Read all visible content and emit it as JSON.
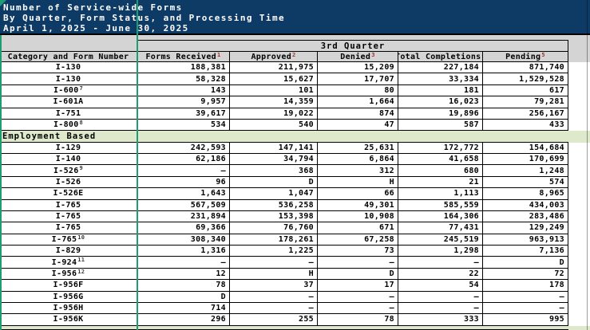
{
  "title": {
    "line1": "Number of Service-wide Forms",
    "line2": "By Quarter, Form Status, and Processing Time",
    "line3": "April 1, 2025 - June 30, 2025"
  },
  "colors": {
    "title_background": "#0E3A66",
    "header_background": "#D4D4D4",
    "section_row_background": "#DEE9CB",
    "selection_border_green": "#1F9D72",
    "footnote_red": "#9E2F26"
  },
  "table": {
    "quarter_header": "3rd Quarter",
    "columns": [
      {
        "key": "form_number",
        "label": "Category and Form Number",
        "sup": ""
      },
      {
        "key": "forms_received",
        "label": "Forms Received",
        "sup": "1"
      },
      {
        "key": "approved",
        "label": "Approved",
        "sup": "2"
      },
      {
        "key": "denied",
        "label": "Denied",
        "sup": "3"
      },
      {
        "key": "total_completions",
        "label": "Total Completions",
        "sup": "4"
      },
      {
        "key": "pending",
        "label": "Pending",
        "sup": "5"
      }
    ],
    "rows": [
      {
        "type": "data",
        "form": "I-130",
        "sup": "",
        "values": [
          "188,381",
          "211,975",
          "15,209",
          "227,184",
          "871,740"
        ]
      },
      {
        "type": "data",
        "form": "I-130",
        "sup": "",
        "values": [
          "58,328",
          "15,627",
          "17,707",
          "33,334",
          "1,529,528"
        ]
      },
      {
        "type": "data",
        "form": "I-600",
        "sup": "7",
        "values": [
          "143",
          "101",
          "80",
          "181",
          "617"
        ]
      },
      {
        "type": "data",
        "form": "I-601A",
        "sup": "",
        "values": [
          "9,957",
          "14,359",
          "1,664",
          "16,023",
          "79,281"
        ]
      },
      {
        "type": "data",
        "form": "I-751",
        "sup": "",
        "values": [
          "39,617",
          "19,022",
          "874",
          "19,896",
          "256,167"
        ]
      },
      {
        "type": "data",
        "form": "I-800",
        "sup": "8",
        "values": [
          "534",
          "540",
          "47",
          "587",
          "433"
        ]
      },
      {
        "type": "section",
        "label": "Employment Based"
      },
      {
        "type": "data",
        "form": "I-129",
        "sup": "",
        "values": [
          "242,593",
          "147,141",
          "25,631",
          "172,772",
          "154,684"
        ]
      },
      {
        "type": "data",
        "form": "I-140",
        "sup": "",
        "values": [
          "62,186",
          "34,794",
          "6,864",
          "41,658",
          "170,699"
        ]
      },
      {
        "type": "data",
        "form": "I-526",
        "sup": "9",
        "values": [
          "–",
          "368",
          "312",
          "680",
          "1,248"
        ]
      },
      {
        "type": "data",
        "form": "I-526",
        "sup": "",
        "values": [
          "96",
          "D",
          "H",
          "21",
          "574"
        ]
      },
      {
        "type": "data",
        "form": "I-526E",
        "sup": "",
        "values": [
          "1,643",
          "1,047",
          "66",
          "1,113",
          "8,965"
        ]
      },
      {
        "type": "data",
        "form": "I-765",
        "sup": "",
        "values": [
          "567,509",
          "536,258",
          "49,301",
          "585,559",
          "434,003"
        ]
      },
      {
        "type": "data",
        "form": "I-765",
        "sup": "",
        "values": [
          "231,894",
          "153,398",
          "10,908",
          "164,306",
          "283,486"
        ]
      },
      {
        "type": "data",
        "form": "I-765",
        "sup": "",
        "values": [
          "69,366",
          "76,760",
          "671",
          "77,431",
          "129,249"
        ]
      },
      {
        "type": "data",
        "form": "I-765",
        "sup": "10",
        "values": [
          "308,340",
          "178,261",
          "67,258",
          "245,519",
          "963,913"
        ]
      },
      {
        "type": "data",
        "form": "I-829",
        "sup": "",
        "values": [
          "1,316",
          "1,225",
          "73",
          "1,298",
          "7,136"
        ]
      },
      {
        "type": "data",
        "form": "I-924",
        "sup": "11",
        "values": [
          "–",
          "–",
          "–",
          "–",
          "D"
        ]
      },
      {
        "type": "data",
        "form": "I-956",
        "sup": "12",
        "values": [
          "12",
          "H",
          "D",
          "22",
          "72"
        ]
      },
      {
        "type": "data",
        "form": "I-956F",
        "sup": "",
        "values": [
          "78",
          "37",
          "17",
          "54",
          "178"
        ]
      },
      {
        "type": "data",
        "form": "I-956G",
        "sup": "",
        "values": [
          "D",
          "–",
          "–",
          "–",
          "–"
        ]
      },
      {
        "type": "data",
        "form": "I-956H",
        "sup": "",
        "values": [
          "714",
          "–",
          "–",
          "–",
          "–"
        ]
      },
      {
        "type": "data",
        "form": "I-956K",
        "sup": "",
        "values": [
          "296",
          "255",
          "78",
          "333",
          "995"
        ]
      },
      {
        "type": "section",
        "label": "",
        "partial": true
      }
    ]
  }
}
